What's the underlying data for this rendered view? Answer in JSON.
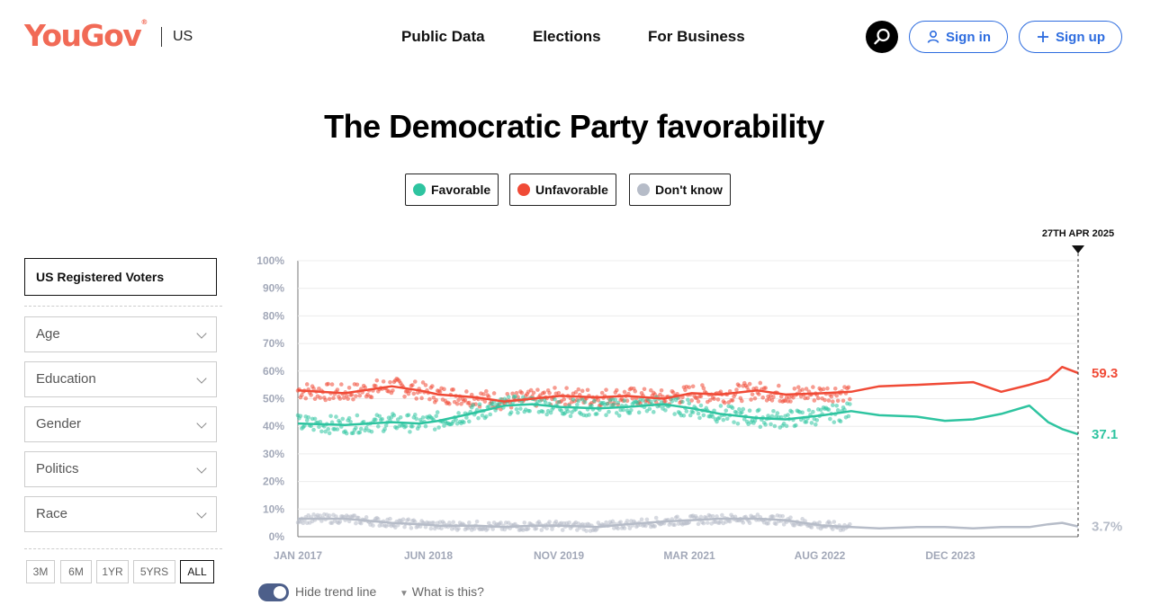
{
  "header": {
    "logo": "YouGov",
    "logo_mark": "®",
    "region": "US",
    "nav": [
      "Public Data",
      "Elections",
      "For Business"
    ],
    "sign_in": "Sign in",
    "sign_up": "Sign up"
  },
  "title": "The Democratic Party favorability",
  "legend": [
    {
      "label": "Favorable",
      "color": "#2ec4a0"
    },
    {
      "label": "Unfavorable",
      "color": "#f04a36"
    },
    {
      "label": "Don't know",
      "color": "#b6bcc8"
    }
  ],
  "filters": {
    "population": "US Registered Voters",
    "dropdowns": [
      "Age",
      "Education",
      "Gender",
      "Politics",
      "Race"
    ]
  },
  "range_buttons": [
    "3M",
    "6M",
    "1YR",
    "5YRS",
    "ALL"
  ],
  "active_range": "ALL",
  "trend_toggle": "Hide trend line",
  "what_is_this": "What is this?",
  "chart_data": {
    "type": "line",
    "title": "The Democratic Party favorability",
    "y_ticks": [
      "100%",
      "90%",
      "80%",
      "70%",
      "60%",
      "50%",
      "40%",
      "30%",
      "20%",
      "10%",
      "0%"
    ],
    "x_ticks": [
      "JAN 2017",
      "JUN 2018",
      "NOV 2019",
      "MAR 2021",
      "AUG 2022",
      "DEC 2023"
    ],
    "ylim": [
      0,
      100
    ],
    "x_range": [
      2017.0,
      2025.32
    ],
    "grid": true,
    "marker_label": "27TH APR 2025",
    "series": [
      {
        "name": "Unfavorable",
        "color": "#f04a36",
        "end_label": "59.3",
        "x": [
          2017.0,
          2017.5,
          2018.0,
          2018.3,
          2018.5,
          2018.9,
          2019.2,
          2019.5,
          2019.8,
          2020.2,
          2020.5,
          2020.9,
          2021.2,
          2021.5,
          2021.9,
          2022.2,
          2022.6,
          2022.9,
          2023.2,
          2023.6,
          2023.9,
          2024.2,
          2024.5,
          2024.8,
          2025.0,
          2025.15,
          2025.32
        ],
        "values": [
          53.0,
          52.0,
          54.5,
          53.0,
          51.5,
          50.5,
          49.0,
          50.0,
          51.0,
          50.5,
          51.0,
          50.0,
          52.0,
          51.5,
          53.0,
          51.5,
          52.0,
          52.5,
          54.5,
          55.0,
          55.5,
          56.0,
          52.5,
          55.0,
          57.0,
          61.5,
          59.3
        ]
      },
      {
        "name": "Favorable",
        "color": "#2ec4a0",
        "end_label": "37.1",
        "x": [
          2017.0,
          2017.5,
          2018.0,
          2018.3,
          2018.5,
          2018.9,
          2019.2,
          2019.5,
          2019.8,
          2020.2,
          2020.5,
          2020.9,
          2021.2,
          2021.5,
          2021.9,
          2022.2,
          2022.6,
          2022.9,
          2023.2,
          2023.6,
          2023.9,
          2024.2,
          2024.5,
          2024.8,
          2025.0,
          2025.15,
          2025.32
        ],
        "values": [
          41.0,
          40.5,
          41.5,
          41.0,
          42.0,
          45.0,
          47.5,
          48.0,
          47.0,
          46.5,
          47.0,
          48.0,
          46.5,
          44.5,
          43.0,
          42.5,
          44.0,
          45.5,
          44.0,
          43.5,
          42.0,
          42.5,
          44.5,
          47.5,
          41.5,
          39.0,
          37.1
        ]
      },
      {
        "name": "Don't know",
        "color": "#b6bcc8",
        "end_label": "3.7%",
        "x": [
          2017.0,
          2017.5,
          2018.0,
          2018.3,
          2018.5,
          2018.9,
          2019.2,
          2019.5,
          2019.8,
          2020.2,
          2020.5,
          2020.9,
          2021.2,
          2021.5,
          2021.9,
          2022.2,
          2022.6,
          2022.9,
          2023.2,
          2023.6,
          2023.9,
          2024.2,
          2024.5,
          2024.8,
          2025.0,
          2025.15,
          2025.32
        ],
        "values": [
          6.5,
          6.5,
          5.0,
          4.5,
          4.0,
          4.0,
          3.5,
          4.0,
          4.0,
          3.5,
          4.5,
          5.5,
          6.0,
          6.5,
          6.5,
          6.0,
          4.0,
          3.5,
          3.0,
          3.5,
          3.5,
          3.0,
          3.5,
          3.5,
          4.5,
          5.0,
          3.7
        ]
      }
    ]
  }
}
